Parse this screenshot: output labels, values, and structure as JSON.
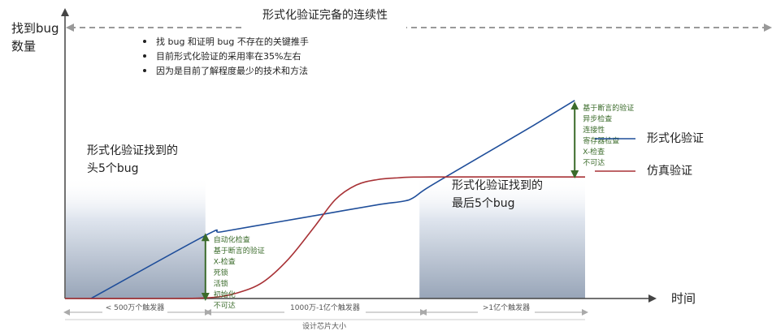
{
  "chart_data": {
    "type": "line",
    "title": "形式化验证完备的连续性",
    "ylabel": [
      "找到bug",
      "数量"
    ],
    "xlabel": "时间",
    "xlim": [
      0,
      100
    ],
    "ylim": [
      0,
      100
    ],
    "x_segments": [
      "< 500万个触发器",
      "1000万-1亿个触发器",
      ">1亿个触发器"
    ],
    "x_caption": "设计芯片大小",
    "bullets": [
      "找 bug 和证明 bug 不存在的关键推手",
      "目前形式化验证的采用率在35%左右",
      "因为是目前了解程度最少的技术和方法"
    ],
    "regions": [
      {
        "label": [
          "形式化验证找到的",
          "头5个bug"
        ],
        "x_range": [
          0,
          27
        ],
        "y_top": 68
      },
      {
        "label": [
          "形式化验证找到的",
          "最后5个bug"
        ],
        "x_range": [
          68,
          100
        ],
        "y_top": 68
      }
    ],
    "series": [
      {
        "name": "形式化验证",
        "color": "#1f4e9a",
        "points": [
          [
            5,
            0
          ],
          [
            27,
            35
          ],
          [
            30,
            37
          ],
          [
            40,
            42
          ],
          [
            50,
            47
          ],
          [
            60,
            52
          ],
          [
            65,
            54
          ],
          [
            67,
            56
          ],
          [
            70,
            62
          ],
          [
            80,
            79
          ],
          [
            90,
            96
          ],
          [
            98,
            110
          ]
        ]
      },
      {
        "name": "仿真验证",
        "color": "#a83236",
        "points": [
          [
            0,
            0
          ],
          [
            20,
            0
          ],
          [
            28,
            0.5
          ],
          [
            33,
            3
          ],
          [
            38,
            9
          ],
          [
            43,
            22
          ],
          [
            48,
            40
          ],
          [
            52,
            55
          ],
          [
            56,
            63
          ],
          [
            60,
            66
          ],
          [
            64,
            67
          ],
          [
            70,
            67.5
          ],
          [
            100,
            67.5
          ]
        ]
      }
    ],
    "annotations": [
      {
        "at_x": 27,
        "y_range": [
          0,
          35
        ],
        "color": "#3b6b2b",
        "lines": [
          "自动化检查",
          "基于断言的验证",
          "X-检查",
          "死锁",
          "活锁",
          "初始化",
          "不可达"
        ]
      },
      {
        "at_x": 98,
        "y_range": [
          68,
          108
        ],
        "color": "#3b6b2b",
        "lines": [
          "基于断言的验证",
          "异步检查",
          "连接性",
          "寄存器检查",
          "X-检查",
          "不可达"
        ]
      }
    ]
  }
}
